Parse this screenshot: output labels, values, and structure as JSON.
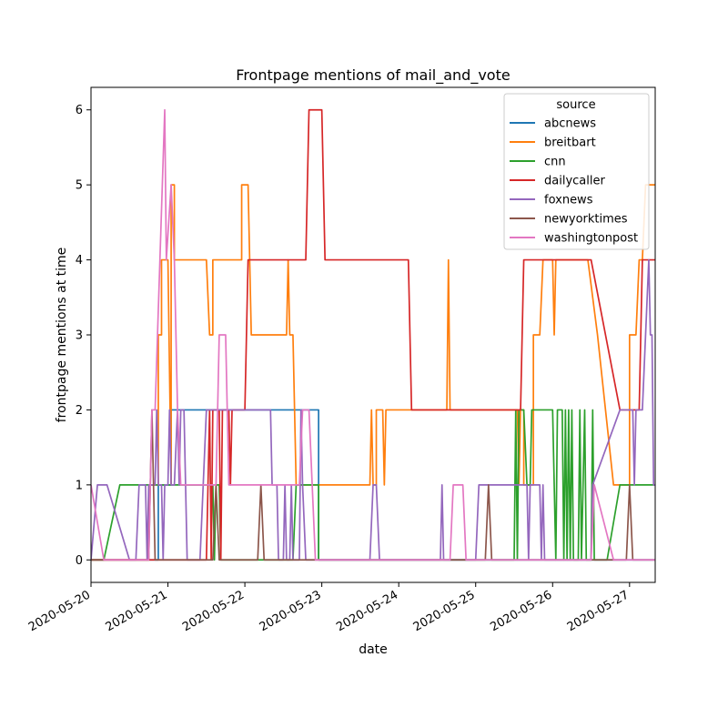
{
  "chart_data": {
    "type": "line",
    "title": "Frontpage mentions of mail_and_vote",
    "xlabel": "date",
    "ylabel": "frontpage mentions at time",
    "x_ticks": [
      "2020-05-20",
      "2020-05-21",
      "2020-05-22",
      "2020-05-23",
      "2020-05-24",
      "2020-05-25",
      "2020-05-26",
      "2020-05-27"
    ],
    "y_ticks": [
      0,
      1,
      2,
      3,
      4,
      5,
      6
    ],
    "xlim": [
      "2020-05-20T00:00",
      "2020-05-27T08:00"
    ],
    "ylim": [
      -0.3,
      6.3
    ],
    "grid": false,
    "legend": {
      "title": "source",
      "placement": "top-right"
    },
    "series": [
      {
        "name": "abcnews",
        "color": "#1f77b4",
        "points": [
          [
            "2020-05-20T00:00",
            0
          ],
          [
            "2020-05-20T21:00",
            0
          ],
          [
            "2020-05-20T21:00",
            1
          ],
          [
            "2020-05-21T01:00",
            1
          ],
          [
            "2020-05-21T01:00",
            2
          ],
          [
            "2020-05-21T12:00",
            2
          ],
          [
            "2020-05-21T16:00",
            2
          ],
          [
            "2020-05-22T12:00",
            2
          ],
          [
            "2020-05-22T23:00",
            2
          ],
          [
            "2020-05-22T23:00",
            0
          ],
          [
            "2020-05-27T08:00",
            0
          ]
        ]
      },
      {
        "name": "breitbart",
        "color": "#ff7f0e",
        "points": [
          [
            "2020-05-20T00:00",
            0
          ],
          [
            "2020-05-20T18:00",
            0
          ],
          [
            "2020-05-20T18:00",
            1
          ],
          [
            "2020-05-20T21:00",
            1
          ],
          [
            "2020-05-20T21:00",
            3
          ],
          [
            "2020-05-20T22:00",
            3
          ],
          [
            "2020-05-20T22:00",
            4
          ],
          [
            "2020-05-21T00:00",
            4
          ],
          [
            "2020-05-21T01:00",
            1
          ],
          [
            "2020-05-21T01:00",
            5
          ],
          [
            "2020-05-21T02:00",
            5
          ],
          [
            "2020-05-21T02:00",
            4
          ],
          [
            "2020-05-21T12:00",
            4
          ],
          [
            "2020-05-21T13:00",
            3
          ],
          [
            "2020-05-21T14:00",
            3
          ],
          [
            "2020-05-21T14:00",
            4
          ],
          [
            "2020-05-21T23:00",
            4
          ],
          [
            "2020-05-21T23:00",
            5
          ],
          [
            "2020-05-22T01:00",
            5
          ],
          [
            "2020-05-22T02:00",
            3
          ],
          [
            "2020-05-22T13:00",
            3
          ],
          [
            "2020-05-22T13:30",
            4
          ],
          [
            "2020-05-22T14:00",
            3
          ],
          [
            "2020-05-22T15:00",
            3
          ],
          [
            "2020-05-22T16:00",
            1
          ],
          [
            "2020-05-23T15:00",
            1
          ],
          [
            "2020-05-23T15:30",
            2
          ],
          [
            "2020-05-23T16:00",
            1
          ],
          [
            "2020-05-23T17:00",
            1
          ],
          [
            "2020-05-23T17:00",
            2
          ],
          [
            "2020-05-23T19:00",
            2
          ],
          [
            "2020-05-23T19:30",
            1
          ],
          [
            "2020-05-23T20:00",
            2
          ],
          [
            "2020-05-24T14:00",
            2
          ],
          [
            "2020-05-24T15:00",
            2
          ],
          [
            "2020-05-24T15:30",
            4
          ],
          [
            "2020-05-24T16:00",
            2
          ],
          [
            "2020-05-25T13:00",
            2
          ],
          [
            "2020-05-25T13:30",
            1
          ],
          [
            "2020-05-25T14:00",
            2
          ],
          [
            "2020-05-25T15:00",
            2
          ],
          [
            "2020-05-25T15:00",
            1
          ],
          [
            "2020-05-25T18:00",
            1
          ],
          [
            "2020-05-25T18:00",
            3
          ],
          [
            "2020-05-25T20:00",
            3
          ],
          [
            "2020-05-25T21:00",
            4
          ],
          [
            "2020-05-26T00:00",
            4
          ],
          [
            "2020-05-26T00:30",
            3
          ],
          [
            "2020-05-26T01:00",
            4
          ],
          [
            "2020-05-26T11:00",
            4
          ],
          [
            "2020-05-26T14:00",
            3
          ],
          [
            "2020-05-26T19:00",
            1
          ],
          [
            "2020-05-27T00:00",
            1
          ],
          [
            "2020-05-27T00:00",
            3
          ],
          [
            "2020-05-27T02:00",
            3
          ],
          [
            "2020-05-27T03:00",
            4
          ],
          [
            "2020-05-27T04:00",
            4
          ],
          [
            "2020-05-27T05:00",
            5
          ],
          [
            "2020-05-27T08:00",
            5
          ]
        ]
      },
      {
        "name": "cnn",
        "color": "#2ca02c",
        "points": [
          [
            "2020-05-20T00:00",
            0
          ],
          [
            "2020-05-20T04:00",
            0
          ],
          [
            "2020-05-20T09:00",
            1
          ],
          [
            "2020-05-21T14:00",
            1
          ],
          [
            "2020-05-21T14:30",
            0
          ],
          [
            "2020-05-21T15:00",
            1
          ],
          [
            "2020-05-21T16:00",
            1
          ],
          [
            "2020-05-21T16:30",
            0
          ],
          [
            "2020-05-22T01:00",
            0
          ],
          [
            "2020-05-22T02:00",
            0
          ],
          [
            "2020-05-22T15:00",
            0
          ],
          [
            "2020-05-22T16:00",
            1
          ],
          [
            "2020-05-22T23:00",
            1
          ],
          [
            "2020-05-22T23:00",
            0
          ],
          [
            "2020-05-25T12:00",
            0
          ],
          [
            "2020-05-25T12:30",
            2
          ],
          [
            "2020-05-25T13:00",
            0
          ],
          [
            "2020-05-25T13:30",
            2
          ],
          [
            "2020-05-25T15:00",
            2
          ],
          [
            "2020-05-25T16:00",
            1
          ],
          [
            "2020-05-25T17:00",
            1
          ],
          [
            "2020-05-25T17:30",
            2
          ],
          [
            "2020-05-26T00:00",
            2
          ],
          [
            "2020-05-26T01:00",
            0
          ],
          [
            "2020-05-26T01:30",
            2
          ],
          [
            "2020-05-26T03:00",
            2
          ],
          [
            "2020-05-26T03:30",
            0
          ],
          [
            "2020-05-26T04:00",
            2
          ],
          [
            "2020-05-26T04:30",
            0
          ],
          [
            "2020-05-26T05:00",
            2
          ],
          [
            "2020-05-26T05:30",
            0
          ],
          [
            "2020-05-26T06:00",
            2
          ],
          [
            "2020-05-26T06:30",
            0
          ],
          [
            "2020-05-26T08:00",
            0
          ],
          [
            "2020-05-26T08:30",
            2
          ],
          [
            "2020-05-26T09:00",
            0
          ],
          [
            "2020-05-26T10:00",
            2
          ],
          [
            "2020-05-26T10:30",
            0
          ],
          [
            "2020-05-26T12:00",
            0
          ],
          [
            "2020-05-26T12:30",
            2
          ],
          [
            "2020-05-26T13:00",
            0
          ],
          [
            "2020-05-26T17:00",
            0
          ],
          [
            "2020-05-26T21:00",
            1
          ],
          [
            "2020-05-27T08:00",
            1
          ]
        ]
      },
      {
        "name": "dailycaller",
        "color": "#d62728",
        "points": [
          [
            "2020-05-20T00:00",
            0
          ],
          [
            "2020-05-21T12:00",
            0
          ],
          [
            "2020-05-21T13:00",
            2
          ],
          [
            "2020-05-21T13:30",
            0
          ],
          [
            "2020-05-21T14:00",
            2
          ],
          [
            "2020-05-21T16:00",
            2
          ],
          [
            "2020-05-21T16:30",
            0
          ],
          [
            "2020-05-21T17:00",
            2
          ],
          [
            "2020-05-21T19:00",
            2
          ],
          [
            "2020-05-21T19:30",
            1
          ],
          [
            "2020-05-21T20:00",
            2
          ],
          [
            "2020-05-22T00:00",
            2
          ],
          [
            "2020-05-22T01:00",
            4
          ],
          [
            "2020-05-22T19:00",
            4
          ],
          [
            "2020-05-22T20:00",
            6
          ],
          [
            "2020-05-23T00:00",
            6
          ],
          [
            "2020-05-23T01:00",
            4
          ],
          [
            "2020-05-24T03:00",
            4
          ],
          [
            "2020-05-24T04:00",
            2
          ],
          [
            "2020-05-25T14:00",
            2
          ],
          [
            "2020-05-25T15:00",
            4
          ],
          [
            "2020-05-26T12:00",
            4
          ],
          [
            "2020-05-26T21:00",
            2
          ],
          [
            "2020-05-27T03:00",
            2
          ],
          [
            "2020-05-27T04:00",
            4
          ],
          [
            "2020-05-27T08:00",
            4
          ]
        ]
      },
      {
        "name": "foxnews",
        "color": "#9467bd",
        "points": [
          [
            "2020-05-20T00:00",
            0
          ],
          [
            "2020-05-20T02:00",
            1
          ],
          [
            "2020-05-20T05:00",
            1
          ],
          [
            "2020-05-20T12:00",
            0
          ],
          [
            "2020-05-20T14:00",
            0
          ],
          [
            "2020-05-20T15:00",
            1
          ],
          [
            "2020-05-20T17:00",
            1
          ],
          [
            "2020-05-20T17:30",
            0
          ],
          [
            "2020-05-20T18:00",
            1
          ],
          [
            "2020-05-20T20:00",
            1
          ],
          [
            "2020-05-20T20:30",
            2
          ],
          [
            "2020-05-20T21:00",
            1
          ],
          [
            "2020-05-20T22:00",
            1
          ],
          [
            "2020-05-20T22:30",
            0
          ],
          [
            "2020-05-20T23:00",
            1
          ],
          [
            "2020-05-21T00:00",
            1
          ],
          [
            "2020-05-21T00:30",
            2
          ],
          [
            "2020-05-21T01:00",
            1
          ],
          [
            "2020-05-21T02:00",
            1
          ],
          [
            "2020-05-21T03:00",
            2
          ],
          [
            "2020-05-21T03:30",
            1
          ],
          [
            "2020-05-21T04:00",
            2
          ],
          [
            "2020-05-21T05:00",
            2
          ],
          [
            "2020-05-21T05:30",
            1
          ],
          [
            "2020-05-21T06:00",
            0
          ],
          [
            "2020-05-21T10:00",
            0
          ],
          [
            "2020-05-21T11:00",
            1
          ],
          [
            "2020-05-21T12:00",
            2
          ],
          [
            "2020-05-22T08:00",
            2
          ],
          [
            "2020-05-22T08:30",
            1
          ],
          [
            "2020-05-22T10:00",
            1
          ],
          [
            "2020-05-22T10:30",
            0
          ],
          [
            "2020-05-22T12:00",
            0
          ],
          [
            "2020-05-22T12:30",
            1
          ],
          [
            "2020-05-22T13:00",
            0
          ],
          [
            "2020-05-22T14:00",
            0
          ],
          [
            "2020-05-22T14:30",
            1
          ],
          [
            "2020-05-22T15:00",
            0
          ],
          [
            "2020-05-22T17:00",
            0
          ],
          [
            "2020-05-22T17:30",
            2
          ],
          [
            "2020-05-22T18:00",
            1
          ],
          [
            "2020-05-22T19:00",
            0
          ],
          [
            "2020-05-23T15:00",
            0
          ],
          [
            "2020-05-23T16:00",
            1
          ],
          [
            "2020-05-23T17:00",
            1
          ],
          [
            "2020-05-23T18:00",
            0
          ],
          [
            "2020-05-24T13:00",
            0
          ],
          [
            "2020-05-24T13:30",
            1
          ],
          [
            "2020-05-24T14:00",
            0
          ],
          [
            "2020-05-25T00:00",
            0
          ],
          [
            "2020-05-25T01:00",
            1
          ],
          [
            "2020-05-25T16:00",
            1
          ],
          [
            "2020-05-25T16:30",
            0
          ],
          [
            "2020-05-25T17:00",
            1
          ],
          [
            "2020-05-25T20:00",
            1
          ],
          [
            "2020-05-25T20:30",
            0
          ],
          [
            "2020-05-25T21:00",
            1
          ],
          [
            "2020-05-25T21:30",
            0
          ],
          [
            "2020-05-26T00:00",
            0
          ],
          [
            "2020-05-26T12:00",
            0
          ],
          [
            "2020-05-26T12:30",
            1
          ],
          [
            "2020-05-26T21:00",
            2
          ],
          [
            "2020-05-27T01:00",
            2
          ],
          [
            "2020-05-27T01:30",
            1
          ],
          [
            "2020-05-27T02:00",
            2
          ],
          [
            "2020-05-27T04:00",
            2
          ],
          [
            "2020-05-27T06:00",
            4
          ],
          [
            "2020-05-27T06:30",
            3
          ],
          [
            "2020-05-27T07:00",
            3
          ],
          [
            "2020-05-27T07:30",
            1
          ],
          [
            "2020-05-27T08:00",
            1
          ]
        ]
      },
      {
        "name": "newyorktimes",
        "color": "#8c564b",
        "points": [
          [
            "2020-05-20T00:00",
            0
          ],
          [
            "2020-05-20T18:00",
            0
          ],
          [
            "2020-05-20T19:00",
            2
          ],
          [
            "2020-05-20T20:00",
            0
          ],
          [
            "2020-05-21T14:00",
            0
          ],
          [
            "2020-05-21T15:00",
            1
          ],
          [
            "2020-05-21T16:00",
            0
          ],
          [
            "2020-05-22T04:00",
            0
          ],
          [
            "2020-05-22T05:00",
            1
          ],
          [
            "2020-05-22T06:00",
            0
          ],
          [
            "2020-05-25T03:00",
            0
          ],
          [
            "2020-05-25T04:00",
            1
          ],
          [
            "2020-05-25T05:00",
            0
          ],
          [
            "2020-05-26T23:00",
            0
          ],
          [
            "2020-05-27T00:00",
            1
          ],
          [
            "2020-05-27T01:00",
            0
          ],
          [
            "2020-05-27T08:00",
            0
          ]
        ]
      },
      {
        "name": "washingtonpost",
        "color": "#e377c2",
        "points": [
          [
            "2020-05-20T00:00",
            1
          ],
          [
            "2020-05-20T04:00",
            0
          ],
          [
            "2020-05-20T18:00",
            0
          ],
          [
            "2020-05-20T19:00",
            2
          ],
          [
            "2020-05-20T20:00",
            2
          ],
          [
            "2020-05-20T23:00",
            6
          ],
          [
            "2020-05-20T23:30",
            4
          ],
          [
            "2020-05-21T01:00",
            5
          ],
          [
            "2020-05-21T02:00",
            4
          ],
          [
            "2020-05-21T03:00",
            2
          ],
          [
            "2020-05-21T04:00",
            1
          ],
          [
            "2020-05-21T15:00",
            1
          ],
          [
            "2020-05-21T16:00",
            3
          ],
          [
            "2020-05-21T18:00",
            3
          ],
          [
            "2020-05-21T19:00",
            1
          ],
          [
            "2020-05-22T17:00",
            1
          ],
          [
            "2020-05-22T18:00",
            2
          ],
          [
            "2020-05-22T20:00",
            2
          ],
          [
            "2020-05-22T21:00",
            1
          ],
          [
            "2020-05-22T22:00",
            0
          ],
          [
            "2020-05-24T16:00",
            0
          ],
          [
            "2020-05-24T17:00",
            1
          ],
          [
            "2020-05-24T20:00",
            1
          ],
          [
            "2020-05-24T21:00",
            0
          ],
          [
            "2020-05-26T12:00",
            0
          ],
          [
            "2020-05-26T13:00",
            1
          ],
          [
            "2020-05-26T19:00",
            0
          ],
          [
            "2020-05-27T08:00",
            0
          ]
        ]
      }
    ]
  }
}
